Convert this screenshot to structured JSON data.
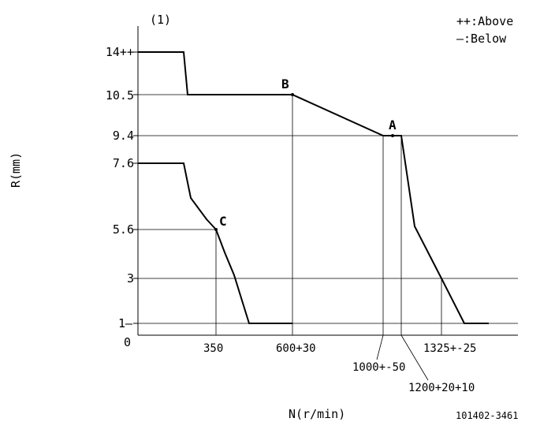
{
  "chart_data": {
    "type": "line",
    "panel_label": "(1)",
    "xlabel": "N(r/min)",
    "ylabel": "R(mm)",
    "footer_code": "101402-3461",
    "legend": [
      "++:Above",
      "—:Below"
    ],
    "y_ticks": [
      "14++",
      "10.5",
      "9.4",
      "7.6",
      "5.6",
      "3",
      "1—"
    ],
    "y_zero_label": "0",
    "x_ticks": [
      "350",
      "600+30",
      "1000+-50",
      "1200+20+10",
      "1325+-25"
    ],
    "series": [
      {
        "points": [
          {
            "x": 0,
            "y": 14
          },
          {
            "x": 230,
            "y": 14
          },
          {
            "x": 255,
            "y": 10.5
          },
          {
            "x": 600,
            "y": 10.5
          },
          {
            "x": 1000,
            "y": 9.4
          },
          {
            "x": 1200,
            "y": 9.4
          },
          {
            "x": 1250,
            "y": 5.8
          },
          {
            "x": 1325,
            "y": 3
          },
          {
            "x": 1450,
            "y": 1
          },
          {
            "x": 1520,
            "y": 1
          }
        ]
      },
      {
        "points": [
          {
            "x": 0,
            "y": 7.6
          },
          {
            "x": 230,
            "y": 7.6
          },
          {
            "x": 260,
            "y": 6.4
          },
          {
            "x": 300,
            "y": 6.0
          },
          {
            "x": 350,
            "y": 5.6
          },
          {
            "x": 380,
            "y": 4.6
          },
          {
            "x": 410,
            "y": 3.2
          },
          {
            "x": 440,
            "y": 1
          },
          {
            "x": 600,
            "y": 1
          }
        ]
      }
    ],
    "points_of_interest": [
      {
        "label": "A",
        "x": 1100,
        "y": 9.4
      },
      {
        "label": "B",
        "x": 600,
        "y": 10.5
      },
      {
        "label": "C",
        "x": 350,
        "y": 5.6
      }
    ]
  }
}
